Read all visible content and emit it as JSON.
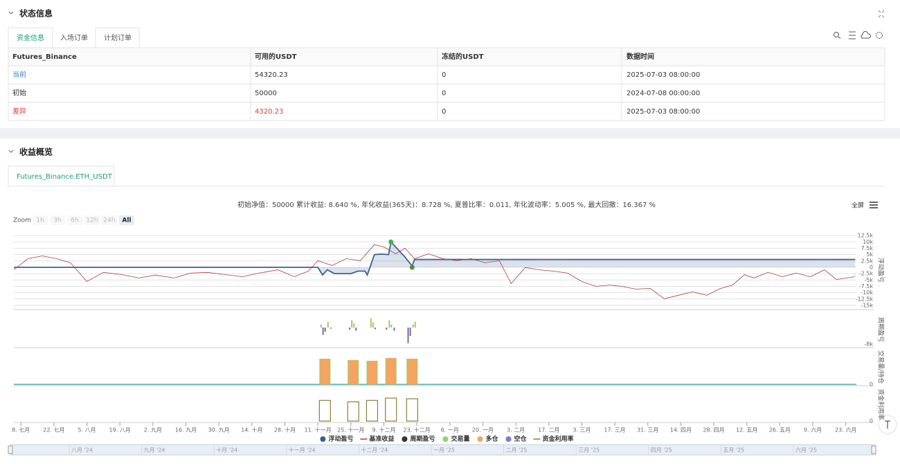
{
  "status": {
    "title": "状态信息",
    "tabs": [
      "资金信息",
      "入场订单",
      "计划订单"
    ],
    "table": {
      "headers": [
        "Futures_Binance",
        "可用的USDT",
        "冻结的USDT",
        "数据时间"
      ],
      "rows": [
        [
          "当前",
          "54320.23",
          "0",
          "2025-07-03 08:00:00"
        ],
        [
          "初始",
          "50000",
          "0",
          "2024-07-08 00:00:00"
        ],
        [
          "差异",
          "4320.23",
          "0",
          "2025-07-03 08:00:00"
        ]
      ]
    }
  },
  "overview": {
    "title": "收益概览",
    "tab": "Futures_Binance.ETH_USDT",
    "summary": "初始净值：50000 累计收益: 8.640 %, 年化收益(365天)：8.728 %, 夏普比率：0.011, 年化波动率：5.005 %, 最大回撤：16.367 %",
    "fullscreen": "全屏",
    "zoom_label": "Zoom",
    "zoom_buttons": [
      "1h",
      "3h",
      "6h",
      "12h",
      "24h",
      "All"
    ],
    "navigator_labels": [
      "八月 '24",
      "九月 '24",
      "十月 '24",
      "十一月 '24",
      "十二月 '24",
      "一月 '25",
      "二月 '25",
      "三月 '25",
      "四月 '25",
      "五月 '25",
      "六月 '25"
    ]
  },
  "chart_data": [
    {
      "type": "line",
      "y_axis_title": "浮动盈亏",
      "xlim": [
        -3,
        354.5
      ],
      "ylim": [
        -16100,
        13900
      ],
      "grid": true,
      "yticks": [
        {
          "value": 12500,
          "label": "12.5k"
        },
        {
          "value": 10000,
          "label": "10k"
        },
        {
          "value": 7500,
          "label": "7.5k"
        },
        {
          "value": 5000,
          "label": "5k"
        },
        {
          "value": 2500,
          "label": "2.5k"
        },
        0,
        {
          "value": -2500,
          "label": "-2.5k"
        },
        {
          "value": -5000,
          "label": "-5k"
        },
        {
          "value": -7500,
          "label": "-7.5k"
        },
        {
          "value": -10000,
          "label": "-10k"
        },
        {
          "value": -12500,
          "label": "-12.5k"
        },
        {
          "value": -15000,
          "label": "-15k"
        }
      ],
      "series": [
        {
          "name": "浮动盈亏",
          "color": "#3a5f95",
          "legend_symbol": "circle",
          "area": true,
          "x": [
            -3,
            126,
            128,
            130,
            133,
            136,
            140,
            143,
            146,
            147,
            150,
            153,
            156,
            157,
            160,
            163,
            166,
            167,
            354
          ],
          "values": [
            0,
            0,
            -3000,
            -1000,
            -2500,
            -2500,
            -2500,
            -1500,
            -1500,
            -3000,
            5000,
            5200,
            5000,
            10000,
            7000,
            4000,
            500,
            3100,
            3100
          ]
        },
        {
          "name": "基准收益",
          "color": "#b03a3a",
          "legend_symbol": "line",
          "x": [
            -3,
            3,
            9,
            15,
            21,
            28,
            35,
            43,
            50,
            57,
            65,
            72,
            79,
            87,
            94,
            101,
            109,
            116,
            122,
            126,
            132,
            138,
            144,
            150,
            154,
            159,
            163,
            167,
            173,
            179,
            185,
            191,
            197,
            203,
            208,
            214,
            220,
            226,
            232,
            238,
            244,
            250,
            255,
            261,
            267,
            273,
            279,
            285,
            291,
            297,
            302,
            307,
            311,
            317,
            323,
            329,
            335,
            341,
            346,
            354
          ],
          "values": [
            -1000,
            3400,
            4500,
            3400,
            1800,
            -5600,
            -2000,
            -2900,
            -4200,
            -3100,
            -4200,
            -2300,
            -2000,
            -2900,
            -3700,
            -2300,
            -1000,
            -3700,
            -1500,
            2600,
            700,
            3400,
            2600,
            8900,
            8000,
            5300,
            7500,
            3400,
            5300,
            3400,
            2600,
            3400,
            1800,
            2600,
            -6400,
            -100,
            -1000,
            -1500,
            -2300,
            -5600,
            -7500,
            -7000,
            -7500,
            -8600,
            -8300,
            -12400,
            -11000,
            -9700,
            -11000,
            -8300,
            -7000,
            -2900,
            -4200,
            -2000,
            -3700,
            -2300,
            -3700,
            -1000,
            -4800,
            -3700
          ]
        }
      ],
      "signals": [
        {
          "x": 157,
          "y": 10000,
          "color": "#3cb44b"
        },
        {
          "x": 166,
          "y": 0,
          "color": "#5b8a2b"
        }
      ]
    },
    {
      "type": "bar",
      "y_axis_title": "周期盈亏",
      "xlim": [
        -3,
        354.5
      ],
      "ylim": [
        -9000,
        7000
      ],
      "yticks": [
        {
          "value": -8000,
          "label": "-8k"
        }
      ],
      "series": [
        {
          "name": "周期盈亏",
          "color": "#333333",
          "legend_symbol": "circle",
          "up_color": "#9ccc65",
          "down_color": "#7b68a6",
          "x": [
            127.4,
            128.2,
            129.1,
            130.3,
            131.5,
            139.5,
            140.4,
            141.3,
            142.2,
            148.5,
            149.4,
            150.3,
            155.1,
            156.3,
            157.2,
            158.4,
            164.3,
            165.2,
            166.4,
            167.3
          ],
          "values": [
            1500,
            -3500,
            -2000,
            2800,
            -500,
            -1000,
            3500,
            2000,
            -1500,
            4500,
            2500,
            -800,
            -1000,
            3500,
            1500,
            -1500,
            -7500,
            -4000,
            1500,
            2800
          ]
        }
      ]
    },
    {
      "type": "volume",
      "y_axis_title": "交易量/持仓",
      "xlim": [
        -3,
        354.5
      ],
      "ylim": [
        0,
        100
      ],
      "yticks": [
        0
      ],
      "zero_color": "#2a9d8f",
      "series": [
        {
          "name": "交易量",
          "color": "#8fd46b",
          "legend_symbol": "circle",
          "x": [
            129,
            141,
            149,
            157,
            166
          ],
          "values": [
            74,
            70,
            68,
            76,
            74
          ]
        },
        {
          "name": "多仓",
          "color": "#f4a460",
          "legend_symbol": "circle",
          "x": [
            129,
            141,
            149,
            157,
            166
          ],
          "values": [
            74,
            70,
            68,
            76,
            74
          ]
        },
        {
          "name": "空仓",
          "color": "#7b7bdb",
          "legend_symbol": "circle",
          "x": [
            129,
            141,
            149,
            157,
            166
          ],
          "values": [
            0,
            0,
            0,
            0,
            0
          ]
        }
      ]
    },
    {
      "type": "step",
      "y_axis_title": "资金利用率",
      "xlim": [
        -3,
        354.5
      ],
      "ylim": [
        0,
        100
      ],
      "yticks": [
        0
      ],
      "xticks": [
        {
          "value": 0,
          "label": "8. 七月"
        },
        {
          "value": 14,
          "label": "22. 七月"
        },
        {
          "value": 28,
          "label": "5. 八月"
        },
        {
          "value": 42,
          "label": "19. 八月"
        },
        {
          "value": 56,
          "label": "2. 九月"
        },
        {
          "value": 70,
          "label": "16. 九月"
        },
        {
          "value": 84,
          "label": "30. 九月"
        },
        {
          "value": 98,
          "label": "14. 十月"
        },
        {
          "value": 112,
          "label": "28. 十月"
        },
        {
          "value": 126,
          "label": "11. 十一月"
        },
        {
          "value": 140,
          "label": "25. 十一月"
        },
        {
          "value": 154,
          "label": "9. 十二月"
        },
        {
          "value": 168,
          "label": "23. 十二月"
        },
        {
          "value": 182,
          "label": "6. 一月"
        },
        {
          "value": 196,
          "label": "20. 一月"
        },
        {
          "value": 210,
          "label": "3. 二月"
        },
        {
          "value": 224,
          "label": "17. 二月"
        },
        {
          "value": 238,
          "label": "3. 三月"
        },
        {
          "value": 252,
          "label": "17. 三月"
        },
        {
          "value": 266,
          "label": "31. 三月"
        },
        {
          "value": 280,
          "label": "14. 四月"
        },
        {
          "value": 294,
          "label": "28. 四月"
        },
        {
          "value": 308,
          "label": "12. 五月"
        },
        {
          "value": 322,
          "label": "26. 五月"
        },
        {
          "value": 336,
          "label": "9. 六月"
        },
        {
          "value": 350,
          "label": "23. 六月"
        }
      ],
      "series": [
        {
          "name": "资金利用率",
          "color": "#8b7d3a",
          "legend_symbol": "line",
          "x": [
            129,
            141,
            149,
            157,
            166
          ],
          "values": [
            62,
            58,
            62,
            69,
            67
          ]
        }
      ]
    }
  ]
}
